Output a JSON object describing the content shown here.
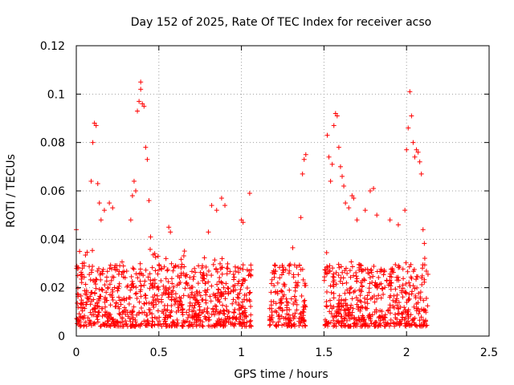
{
  "chart_data": {
    "type": "scatter",
    "title": "Day 152 of 2025, Rate Of TEC Index for receiver acso",
    "xlabel": "GPS time / hours",
    "ylabel": "ROTI / TECUs",
    "xlim": [
      0,
      2.5
    ],
    "ylim": [
      0,
      0.12
    ],
    "xticks": [
      "0",
      "0.5",
      "1",
      "1.5",
      "2",
      "2.5"
    ],
    "yticks": [
      "0",
      "0.02",
      "0.04",
      "0.06",
      "0.08",
      "0.1",
      "0.12"
    ],
    "grid": true,
    "marker": "plus",
    "color": "#ff0000",
    "clusters": [
      {
        "x_range": [
          0.0,
          1.06
        ],
        "baseline": [
          0.004,
          0.03
        ],
        "points": 900
      },
      {
        "x_range": [
          1.17,
          1.39
        ],
        "baseline": [
          0.004,
          0.03
        ],
        "points": 180
      },
      {
        "x_range": [
          1.5,
          2.13
        ],
        "baseline": [
          0.004,
          0.03
        ],
        "points": 520
      }
    ],
    "outliers": [
      [
        0.0,
        0.044
      ],
      [
        0.02,
        0.035
      ],
      [
        0.09,
        0.064
      ],
      [
        0.1,
        0.08
      ],
      [
        0.11,
        0.088
      ],
      [
        0.12,
        0.087
      ],
      [
        0.13,
        0.063
      ],
      [
        0.14,
        0.055
      ],
      [
        0.15,
        0.048
      ],
      [
        0.17,
        0.052
      ],
      [
        0.2,
        0.055
      ],
      [
        0.22,
        0.053
      ],
      [
        0.33,
        0.048
      ],
      [
        0.34,
        0.058
      ],
      [
        0.35,
        0.064
      ],
      [
        0.36,
        0.06
      ],
      [
        0.37,
        0.093
      ],
      [
        0.38,
        0.097
      ],
      [
        0.39,
        0.105
      ],
      [
        0.39,
        0.102
      ],
      [
        0.4,
        0.096
      ],
      [
        0.41,
        0.095
      ],
      [
        0.42,
        0.078
      ],
      [
        0.43,
        0.073
      ],
      [
        0.44,
        0.056
      ],
      [
        0.45,
        0.041
      ],
      [
        0.56,
        0.045
      ],
      [
        0.57,
        0.043
      ],
      [
        0.8,
        0.043
      ],
      [
        0.82,
        0.054
      ],
      [
        0.85,
        0.052
      ],
      [
        0.88,
        0.057
      ],
      [
        0.9,
        0.054
      ],
      [
        1.0,
        0.048
      ],
      [
        1.01,
        0.047
      ],
      [
        1.05,
        0.059
      ],
      [
        1.36,
        0.049
      ],
      [
        1.37,
        0.067
      ],
      [
        1.38,
        0.073
      ],
      [
        1.39,
        0.075
      ],
      [
        1.52,
        0.083
      ],
      [
        1.53,
        0.074
      ],
      [
        1.54,
        0.064
      ],
      [
        1.55,
        0.071
      ],
      [
        1.56,
        0.087
      ],
      [
        1.57,
        0.092
      ],
      [
        1.58,
        0.091
      ],
      [
        1.59,
        0.078
      ],
      [
        1.6,
        0.07
      ],
      [
        1.61,
        0.066
      ],
      [
        1.62,
        0.062
      ],
      [
        1.63,
        0.055
      ],
      [
        1.65,
        0.053
      ],
      [
        1.67,
        0.058
      ],
      [
        1.68,
        0.057
      ],
      [
        1.7,
        0.048
      ],
      [
        1.75,
        0.052
      ],
      [
        1.78,
        0.06
      ],
      [
        1.8,
        0.061
      ],
      [
        1.82,
        0.05
      ],
      [
        1.9,
        0.048
      ],
      [
        1.95,
        0.046
      ],
      [
        1.99,
        0.052
      ],
      [
        2.0,
        0.077
      ],
      [
        2.01,
        0.086
      ],
      [
        2.02,
        0.101
      ],
      [
        2.03,
        0.091
      ],
      [
        2.04,
        0.08
      ],
      [
        2.05,
        0.074
      ],
      [
        2.06,
        0.077
      ],
      [
        2.07,
        0.076
      ],
      [
        2.08,
        0.072
      ],
      [
        2.09,
        0.067
      ],
      [
        2.1,
        0.044
      ]
    ]
  }
}
